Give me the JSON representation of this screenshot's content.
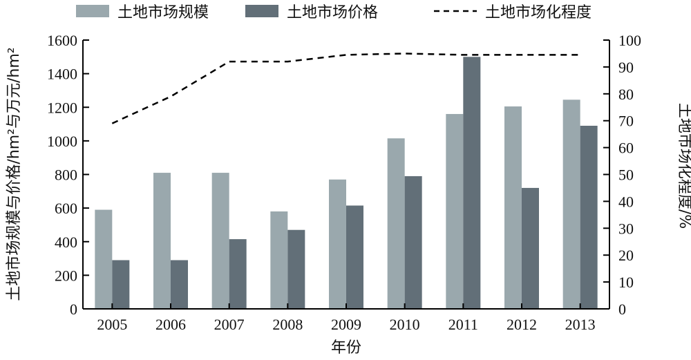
{
  "chart_data": {
    "type": "bar",
    "categories": [
      "2005",
      "2006",
      "2007",
      "2008",
      "2009",
      "2010",
      "2011",
      "2012",
      "2013"
    ],
    "series": [
      {
        "name": "土地市场规模",
        "type": "bar",
        "axis": "left",
        "color": "#9aa8ad",
        "values": [
          590,
          810,
          810,
          580,
          770,
          1015,
          1160,
          1205,
          1245
        ]
      },
      {
        "name": "土地市场价格",
        "type": "bar",
        "axis": "left",
        "color": "#626f78",
        "values": [
          290,
          290,
          415,
          470,
          615,
          790,
          1500,
          720,
          1090
        ]
      },
      {
        "name": "土地市场化程度",
        "type": "line",
        "style": "dashed",
        "axis": "right",
        "color": "#000000",
        "values": [
          69,
          79,
          92,
          92,
          94.5,
          95,
          94.5,
          94.5,
          94.5
        ]
      }
    ],
    "xlabel": "年份",
    "ylabel": "土地市场规模与价格/hm²与万元/hm²",
    "ylabel_right": "土地市场化程度/%",
    "ylim": [
      0,
      1600
    ],
    "ylim_right": [
      0,
      100
    ],
    "yticks": [
      "0",
      "200",
      "400",
      "600",
      "800",
      "1000",
      "1200",
      "1400",
      "1600"
    ],
    "yticks_right": [
      "0",
      "10",
      "20",
      "30",
      "40",
      "50",
      "60",
      "70",
      "80",
      "90",
      "100"
    ],
    "grid": false,
    "legend": "top"
  }
}
